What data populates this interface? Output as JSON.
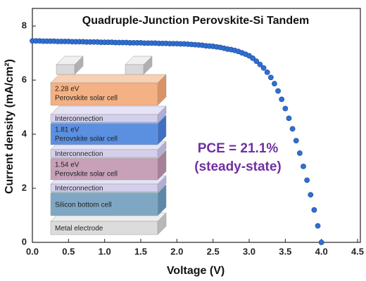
{
  "chart_data": {
    "type": "scatter",
    "title": "Quadruple-Junction Perovskite-Si Tandem",
    "x_label": "Voltage (V)",
    "y_label": "Current density (mA/cm²)",
    "annotations": [
      "PCE = 21.1%",
      "(steady-state)"
    ],
    "annotation_color": "#7030a0",
    "xlim": [
      0,
      4.5
    ],
    "ylim": [
      0,
      8.6
    ],
    "xticks": [
      {
        "value": 0,
        "label": "0.0"
      },
      0.5,
      {
        "value": 1,
        "label": "1.0"
      },
      1.5,
      {
        "value": 2,
        "label": "2.0"
      },
      2.5,
      {
        "value": 3,
        "label": "3.0"
      },
      3.5,
      {
        "value": 4,
        "label": "4.0"
      },
      4.5
    ],
    "yticks": [
      0,
      2,
      4,
      6,
      8
    ],
    "series": [
      {
        "color": "#2f6fd0",
        "x": [
          0,
          0.05,
          0.1,
          0.15,
          0.2,
          0.25,
          0.3,
          0.35,
          0.4,
          0.45,
          0.5,
          0.55,
          0.6,
          0.65,
          0.7,
          0.75,
          0.8,
          0.85,
          0.9,
          0.95,
          1,
          1.05,
          1.1,
          1.15,
          1.2,
          1.25,
          1.3,
          1.35,
          1.4,
          1.45,
          1.5,
          1.55,
          1.6,
          1.65,
          1.7,
          1.75,
          1.8,
          1.85,
          1.9,
          1.95,
          2,
          2.05,
          2.1,
          2.15,
          2.2,
          2.25,
          2.3,
          2.35,
          2.4,
          2.45,
          2.5,
          2.55,
          2.6,
          2.65,
          2.7,
          2.75,
          2.8,
          2.85,
          2.9,
          2.95,
          3,
          3.05,
          3.1,
          3.15,
          3.2,
          3.25,
          3.3,
          3.35,
          3.4,
          3.45,
          3.5,
          3.55,
          3.6,
          3.65,
          3.7,
          3.75,
          3.8,
          3.85,
          3.9,
          3.95,
          4
        ],
        "values": [
          7.45,
          7.45,
          7.45,
          7.44,
          7.44,
          7.44,
          7.44,
          7.43,
          7.43,
          7.43,
          7.43,
          7.42,
          7.42,
          7.42,
          7.42,
          7.41,
          7.41,
          7.41,
          7.41,
          7.4,
          7.4,
          7.4,
          7.4,
          7.39,
          7.39,
          7.39,
          7.39,
          7.38,
          7.38,
          7.38,
          7.38,
          7.37,
          7.37,
          7.37,
          7.37,
          7.36,
          7.36,
          7.36,
          7.35,
          7.35,
          7.35,
          7.34,
          7.34,
          7.33,
          7.32,
          7.31,
          7.3,
          7.29,
          7.27,
          7.26,
          7.25,
          7.23,
          7.21,
          7.18,
          7.15,
          7.13,
          7.1,
          7.06,
          7.01,
          6.96,
          6.9,
          6.81,
          6.7,
          6.58,
          6.45,
          6.29,
          6.1,
          5.87,
          5.6,
          5.29,
          4.95,
          4.59,
          4.2,
          3.76,
          3.3,
          2.81,
          2.3,
          1.76,
          1.2,
          0.61,
          0.0
        ]
      }
    ],
    "inset": {
      "layers": [
        {
          "energy": "2.28 eV",
          "label": "Perovskite solar cell"
        },
        {
          "label": "Interconnection"
        },
        {
          "energy": "1.81 eV",
          "label": "Perovskite solar cell"
        },
        {
          "label": "Interconnection"
        },
        {
          "energy": "1.54 eV",
          "label": "Perovskite solar cell"
        },
        {
          "label": "Interconnection"
        },
        {
          "label": "Silicon bottom cell"
        },
        {
          "label": "Metal electrode"
        }
      ]
    }
  }
}
